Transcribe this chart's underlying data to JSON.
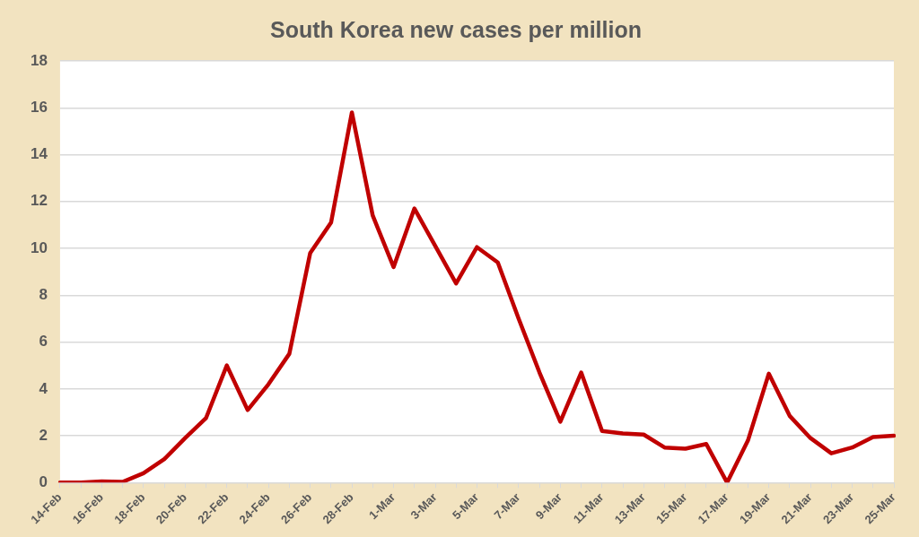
{
  "chart_data": {
    "type": "line",
    "title": "South Korea new cases per million",
    "categories": [
      "14-Feb",
      null,
      "16-Feb",
      null,
      "18-Feb",
      null,
      "20-Feb",
      null,
      "22-Feb",
      null,
      "24-Feb",
      null,
      "26-Feb",
      null,
      "28-Feb",
      null,
      "1-Mar",
      null,
      "3-Mar",
      null,
      "5-Mar",
      null,
      "7-Mar",
      null,
      "9-Mar",
      null,
      "11-Mar",
      null,
      "13-Mar",
      null,
      "15-Mar",
      null,
      "17-Mar",
      null,
      "19-Mar",
      null,
      "21-Mar",
      null,
      "23-Mar",
      null,
      "25-Mar"
    ],
    "series": [
      {
        "color": "#c00000",
        "values": [
          0,
          0,
          0.05,
          0.03,
          0.4,
          1.0,
          1.9,
          2.75,
          5.0,
          3.1,
          4.2,
          5.5,
          9.8,
          11.1,
          15.8,
          11.4,
          9.2,
          11.7,
          10.1,
          8.5,
          10.05,
          9.4,
          7.0,
          4.7,
          2.6,
          4.7,
          2.2,
          2.1,
          2.05,
          1.5,
          1.45,
          1.65,
          0,
          1.8,
          4.65,
          2.85,
          1.9,
          1.25,
          1.5,
          1.95,
          2.0
        ]
      }
    ],
    "ylim": [
      0,
      18
    ],
    "yticks": [
      0,
      2,
      4,
      6,
      8,
      10,
      12,
      14,
      16,
      18
    ],
    "grid": "y",
    "legend": false,
    "marker": "none",
    "line_style": "solid"
  }
}
